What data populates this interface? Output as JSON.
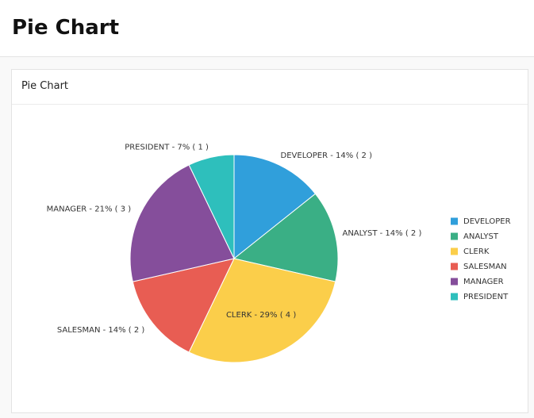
{
  "page_title": "Pie Chart",
  "region_title": "Pie Chart",
  "chart_data": {
    "type": "pie",
    "categories": [
      "DEVELOPER",
      "ANALYST",
      "CLERK",
      "SALESMAN",
      "MANAGER",
      "PRESIDENT"
    ],
    "values": [
      2,
      2,
      4,
      2,
      3,
      1
    ],
    "value_labels": [
      "DEVELOPER - 14% ( 2 )",
      "ANALYST - 14% ( 2 )",
      "CLERK - 29% ( 4 )",
      "SALESMAN - 14% ( 2 )",
      "MANAGER - 21% ( 3 )",
      "PRESIDENT - 7% ( 1 )"
    ],
    "colors": [
      "#309fdb",
      "#3aaf85",
      "#fbce4a",
      "#e85d53",
      "#854e9b",
      "#2ebfbc"
    ],
    "legend": "right"
  }
}
